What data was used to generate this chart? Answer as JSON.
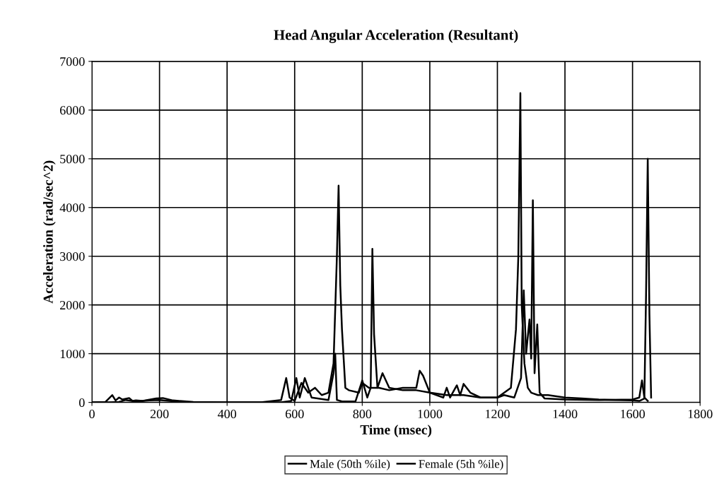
{
  "chart_data": {
    "type": "line",
    "title": "Head Angular Acceleration (Resultant)",
    "xlabel": "Time (msec)",
    "ylabel": "Acceleration (rad/sec^2)",
    "xlim": [
      0,
      1800
    ],
    "ylim": [
      0,
      7000
    ],
    "xticks": [
      0,
      200,
      400,
      600,
      800,
      1000,
      1200,
      1400,
      1600,
      1800
    ],
    "yticks": [
      0,
      1000,
      2000,
      3000,
      4000,
      5000,
      6000,
      7000
    ],
    "grid": true,
    "legend": "bottom",
    "marker": "none",
    "line_style": "solid",
    "series": [
      {
        "name": "Male (50th %ile)",
        "color": "#000000",
        "x": [
          0,
          40,
          60,
          70,
          80,
          90,
          110,
          120,
          130,
          150,
          190,
          210,
          240,
          300,
          400,
          500,
          560,
          575,
          585,
          600,
          620,
          640,
          660,
          680,
          700,
          715,
          725,
          730,
          735,
          740,
          750,
          760,
          790,
          800,
          820,
          850,
          880,
          920,
          960,
          970,
          980,
          1000,
          1050,
          1100,
          1150,
          1200,
          1240,
          1255,
          1262,
          1268,
          1272,
          1280,
          1290,
          1300,
          1320,
          1350,
          1400,
          1450,
          1500,
          1550,
          1600,
          1620,
          1635,
          1640,
          1645,
          1650,
          1655
        ],
        "values": [
          0,
          10,
          150,
          40,
          100,
          60,
          90,
          30,
          40,
          30,
          80,
          90,
          40,
          10,
          0,
          0,
          50,
          500,
          100,
          30,
          400,
          200,
          300,
          150,
          200,
          800,
          3000,
          4450,
          2400,
          1500,
          300,
          250,
          200,
          400,
          300,
          300,
          250,
          300,
          300,
          650,
          550,
          200,
          150,
          150,
          100,
          100,
          300,
          1500,
          3000,
          6350,
          2000,
          800,
          300,
          200,
          150,
          150,
          100,
          80,
          60,
          50,
          40,
          30,
          80,
          2200,
          5000,
          1800,
          100
        ]
      },
      {
        "name": "Female (5th %ile)",
        "color": "#000000",
        "x": [
          0,
          50,
          80,
          100,
          130,
          170,
          200,
          230,
          280,
          400,
          500,
          560,
          590,
          605,
          615,
          630,
          650,
          700,
          715,
          720,
          725,
          740,
          780,
          800,
          815,
          825,
          830,
          835,
          845,
          860,
          880,
          920,
          960,
          1000,
          1040,
          1050,
          1060,
          1080,
          1090,
          1100,
          1120,
          1150,
          1200,
          1220,
          1250,
          1270,
          1278,
          1285,
          1295,
          1300,
          1305,
          1310,
          1318,
          1325,
          1340,
          1400,
          1500,
          1600,
          1620,
          1628,
          1635,
          1645
        ],
        "values": [
          0,
          0,
          10,
          50,
          20,
          40,
          50,
          30,
          0,
          0,
          0,
          0,
          30,
          500,
          100,
          500,
          100,
          50,
          600,
          1000,
          50,
          20,
          20,
          450,
          100,
          300,
          3150,
          1400,
          300,
          600,
          300,
          250,
          250,
          200,
          100,
          300,
          100,
          350,
          150,
          380,
          200,
          100,
          100,
          150,
          100,
          500,
          2300,
          1000,
          1700,
          900,
          4150,
          600,
          1600,
          200,
          80,
          60,
          50,
          60,
          100,
          450,
          100,
          30
        ]
      }
    ]
  }
}
